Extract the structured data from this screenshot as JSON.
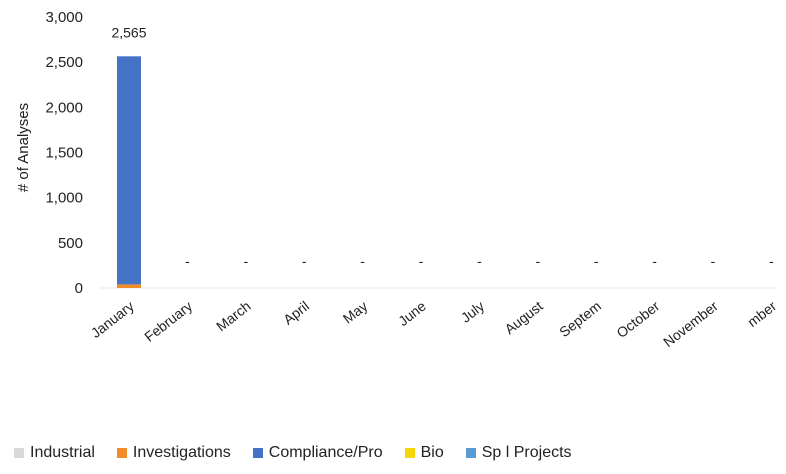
{
  "chart_data": {
    "type": "bar",
    "stacked": true,
    "ylabel": "# of Analyses",
    "ylim": [
      0,
      3000
    ],
    "yticks": [
      0,
      500,
      1000,
      1500,
      2000,
      2500,
      3000
    ],
    "ytick_labels": [
      "0",
      "500",
      "1,000",
      "1,500",
      "2,000",
      "2,500",
      "3,000"
    ],
    "categories": [
      "January",
      "February",
      "March",
      "April",
      "May",
      "June",
      "July",
      "August",
      "September",
      "October",
      "November",
      "December"
    ],
    "tick_labels": [
      "January",
      "February",
      "March",
      "April",
      "May",
      "June",
      "July",
      "August",
      "Septem",
      "October",
      "November",
      "mber"
    ],
    "totals": [
      2565,
      0,
      0,
      0,
      0,
      0,
      0,
      0,
      0,
      0,
      0,
      0
    ],
    "total_labels": [
      "2,565",
      "-",
      "-",
      "-",
      "-",
      "-",
      "-",
      "-",
      "-",
      "-",
      "-",
      "-"
    ],
    "series": [
      {
        "name": "Industrial",
        "color": "#d9d9d9",
        "values": [
          0,
          0,
          0,
          0,
          0,
          0,
          0,
          0,
          0,
          0,
          0,
          0
        ]
      },
      {
        "name": "Investigations",
        "color": "#f28c28",
        "values": [
          40,
          0,
          0,
          0,
          0,
          0,
          0,
          0,
          0,
          0,
          0,
          0
        ]
      },
      {
        "name": "Compliance/Pro",
        "color": "#4472c4",
        "values": [
          2525,
          0,
          0,
          0,
          0,
          0,
          0,
          0,
          0,
          0,
          0,
          0
        ]
      },
      {
        "name": "Bio",
        "color": "#f5d60a",
        "values": [
          0,
          0,
          0,
          0,
          0,
          0,
          0,
          0,
          0,
          0,
          0,
          0
        ]
      },
      {
        "name": "Sp  l Projects",
        "color": "#5b9bd5",
        "values": [
          0,
          0,
          0,
          0,
          0,
          0,
          0,
          0,
          0,
          0,
          0,
          0
        ]
      }
    ],
    "grid": false,
    "legend_position": "bottom"
  }
}
